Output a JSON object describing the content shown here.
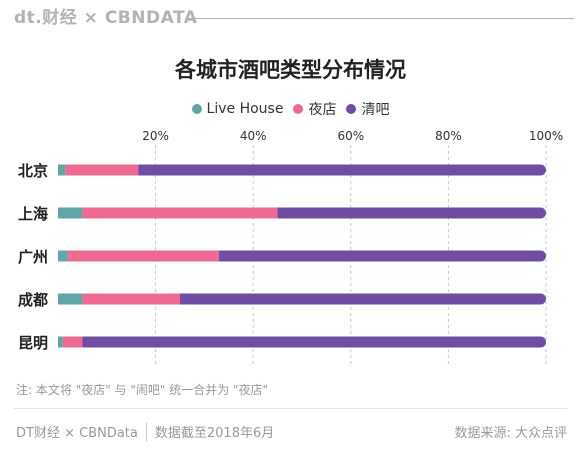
{
  "brand": {
    "text": "dt.财经 × CBNDATA"
  },
  "colors": {
    "live_house": "#5fa6a6",
    "nightclub": "#ee6a93",
    "bar": "#6e4ea3",
    "grid": "#c9c9c9"
  },
  "legend": [
    {
      "label": "Live House",
      "color": "#5fa6a6"
    },
    {
      "label": "夜店",
      "color": "#ee6a93"
    },
    {
      "label": "清吧",
      "color": "#6e4ea3"
    }
  ],
  "chart_data": {
    "type": "bar",
    "orientation": "horizontal",
    "stacked": true,
    "title": "各城市酒吧类型分布情况",
    "categories": [
      "北京",
      "上海",
      "广州",
      "成都",
      "昆明"
    ],
    "series": [
      {
        "name": "Live House",
        "values": [
          1.5,
          5,
          2,
          5,
          1
        ],
        "color": "#5fa6a6"
      },
      {
        "name": "夜店",
        "values": [
          15,
          40,
          31,
          20,
          4
        ],
        "color": "#ee6a93"
      },
      {
        "name": "清吧",
        "values": [
          83.5,
          55,
          67,
          75,
          95
        ],
        "color": "#6e4ea3"
      }
    ],
    "xlim": [
      0,
      100
    ],
    "xticks": [
      20,
      40,
      60,
      80,
      100
    ],
    "xtick_labels": [
      "20%",
      "40%",
      "60%",
      "80%",
      "100%"
    ],
    "grid": "vertical dashed",
    "legend_position": "top-center"
  },
  "note": "注: 本文将 \"夜店\" 与 \"闹吧\" 统一合并为 \"夜店\"",
  "footer": {
    "brand": "DT财经 × CBNData",
    "date": "数据截至2018年6月",
    "source": "数据来源: 大众点评"
  }
}
